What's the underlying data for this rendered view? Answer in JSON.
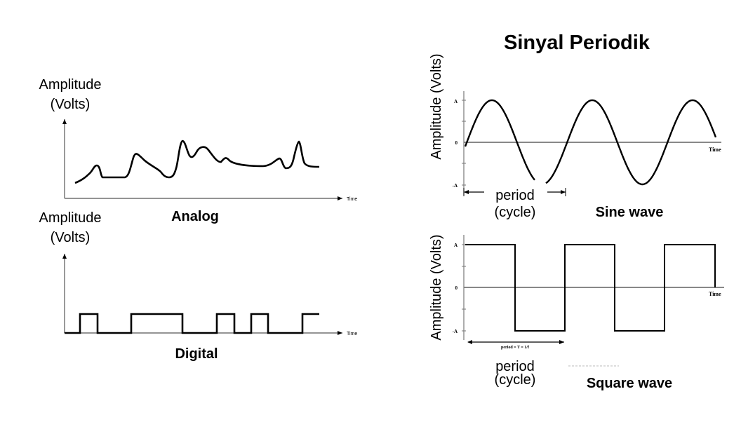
{
  "title": "Sinyal Periodik",
  "analog": {
    "y_label_line1": "Amplitude",
    "y_label_line2": "(Volts)",
    "x_label": "Time",
    "caption": "Analog"
  },
  "digital": {
    "y_label_line1": "Amplitude",
    "y_label_line2": "(Volts)",
    "x_label": "Time",
    "caption": "Digital"
  },
  "sine": {
    "y_label": "Amplitude (Volts)",
    "tick_pos": "A",
    "tick_zero": "0",
    "tick_neg": "-A",
    "x_label": "Time",
    "period_line1": "period",
    "period_line2": "(cycle)",
    "caption": "Sine wave"
  },
  "square": {
    "y_label": "Amplitude (Volts)",
    "tick_pos": "A",
    "tick_zero": "0",
    "tick_neg": "-A",
    "x_label": "Time",
    "period_formula": "period = T = 1/f",
    "period_line1": "period",
    "period_line2": "(cycle)",
    "caption": "Square wave"
  },
  "colors": {
    "ink": "#000000",
    "axis": "#555555",
    "grey": "#888888"
  }
}
